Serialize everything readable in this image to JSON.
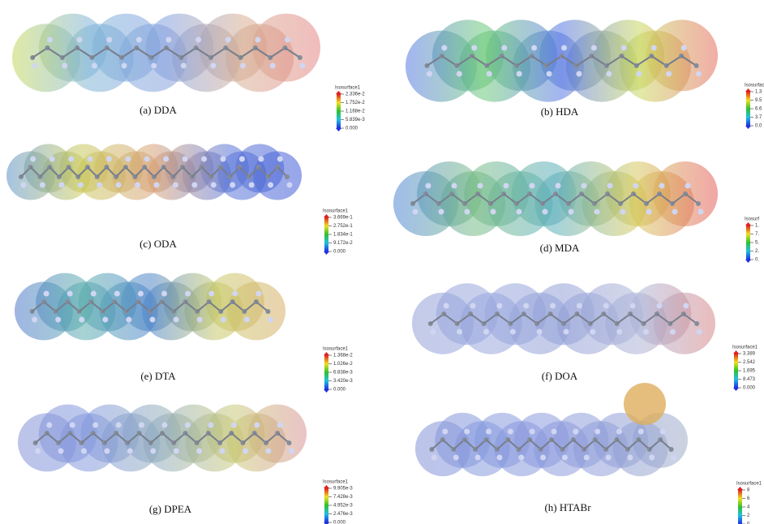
{
  "panels": [
    {
      "caption": "(a) DDA",
      "legend": {
        "title": "Isosurface1",
        "labels": [
          "2.336e-2",
          "1.752e-2",
          "1.168e-2",
          "5.839e-3",
          "0.000"
        ]
      }
    },
    {
      "caption": "(b) HDA",
      "legend": {
        "title": "Isosurfac",
        "labels": [
          "1.3",
          "9.5",
          "6.6",
          "3.7",
          "0.0"
        ]
      }
    },
    {
      "caption": "(c) ODA",
      "legend": {
        "title": "Isosurface1",
        "labels": [
          "3.669e-1",
          "2.752e-1",
          "1.834e-1",
          "9.172e-2",
          "0.000"
        ]
      }
    },
    {
      "caption": "(d) MDA",
      "legend": {
        "title": "Isosurf",
        "labels": [
          "1.",
          "7.",
          "5.",
          "2.",
          "0."
        ]
      }
    },
    {
      "caption": "(e) DTA",
      "legend": {
        "title": "Isosurface1",
        "labels": [
          "1.368e-2",
          "1.026e-2",
          "6.838e-3",
          "3.420e-3",
          "0.000"
        ]
      }
    },
    {
      "caption": "(f) DOA",
      "legend": {
        "title": "Isosurface1",
        "labels": [
          "3.389",
          "2.542",
          "1.695",
          "8.473",
          "0.000"
        ]
      }
    },
    {
      "caption": "(g) DPEA",
      "legend": {
        "title": "Isosurface1",
        "labels": [
          "9.905e-3",
          "7.428e-3",
          "4.952e-3",
          "2.476e-3",
          "0.000"
        ]
      }
    },
    {
      "caption": "(h) HTABr",
      "legend": {
        "title": "Isosurface1",
        "labels": [
          "8",
          "6",
          "4",
          "2",
          "0"
        ]
      }
    }
  ]
}
